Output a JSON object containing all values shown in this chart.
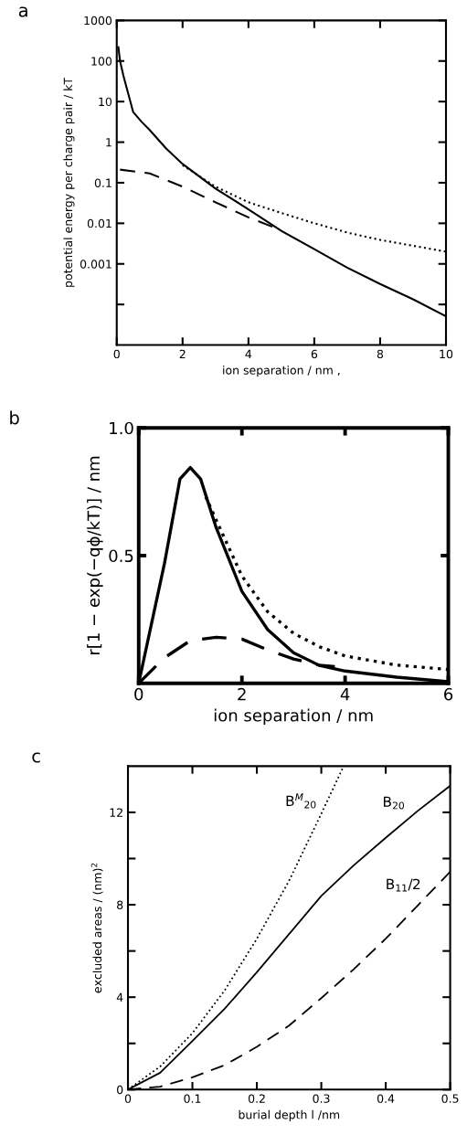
{
  "chart_data": [
    {
      "type": "line",
      "title": "a",
      "xlabel": "ion separation / nm ,",
      "ylabel": "potential energy per charge pair / kT",
      "log": "y",
      "xlim": [
        0,
        10
      ],
      "ylim": [
        1e-05,
        1000
      ],
      "xticks": [
        0,
        2,
        4,
        6,
        8,
        10
      ],
      "yticks": [
        {
          "value": 1000,
          "label": "1000"
        },
        {
          "value": 100,
          "label": "100"
        },
        {
          "value": 10,
          "label": "10"
        },
        {
          "value": 1,
          "label": "1"
        },
        {
          "value": 0.1,
          "label": "0.1"
        },
        {
          "value": 0.01,
          "label": "0.01"
        },
        {
          "value": 0.001,
          "label": "0.001"
        },
        {
          "value": 0.0001,
          "label": null
        }
      ],
      "grid": false,
      "legend": false,
      "series": [
        {
          "color": "#000000",
          "line_style": "solid",
          "x": [
            0.05,
            0.1,
            0.2,
            0.3,
            0.5,
            0.75,
            1,
            1.5,
            2,
            3,
            4,
            5,
            6,
            7,
            8,
            9,
            10
          ],
          "values": [
            220,
            100,
            44,
            22,
            5.5,
            3.2,
            2,
            0.7,
            0.29,
            0.072,
            0.022,
            0.0065,
            0.0023,
            0.00081,
            0.00032,
            0.000134,
            5.1e-05
          ]
        },
        {
          "color": "#000000",
          "line_style": "dashed",
          "x": [
            0.1,
            1,
            2,
            3,
            4,
            4.8
          ],
          "values": [
            0.21,
            0.17,
            0.08,
            0.033,
            0.014,
            0.0078
          ]
        },
        {
          "color": "#000000",
          "line_style": "dotted",
          "x": [
            2,
            3,
            4,
            5,
            6,
            7,
            8,
            9,
            10
          ],
          "values": [
            0.27,
            0.08,
            0.033,
            0.018,
            0.01,
            0.0059,
            0.0039,
            0.0028,
            0.002
          ]
        }
      ]
    },
    {
      "type": "line",
      "title": "b",
      "xlabel": "ion separation / nm",
      "ylabel": "r[1 − exp(−qϕ/kT)] / nm",
      "xlim": [
        0,
        6
      ],
      "ylim": [
        0,
        1
      ],
      "xticks": [
        0,
        2,
        4,
        6
      ],
      "yticks": [
        {
          "value": 0.5,
          "label": "0.5"
        },
        {
          "value": 1.0,
          "label": "1.0"
        }
      ],
      "grid": false,
      "legend": false,
      "series": [
        {
          "color": "#000000",
          "line_style": "solid",
          "x": [
            0,
            0.5,
            0.8,
            1,
            1.2,
            1.5,
            2,
            2.5,
            3,
            3.5,
            4,
            5,
            6
          ],
          "values": [
            0,
            0.47,
            0.8,
            0.845,
            0.8,
            0.61,
            0.36,
            0.21,
            0.12,
            0.07,
            0.048,
            0.024,
            0.006
          ]
        },
        {
          "color": "#000000",
          "line_style": "dashed",
          "x": [
            0,
            0.5,
            1,
            1.5,
            2,
            2.5,
            3,
            3.5,
            3.8
          ],
          "values": [
            0,
            0.1,
            0.167,
            0.18,
            0.173,
            0.131,
            0.095,
            0.071,
            0.065
          ]
        },
        {
          "color": "#000000",
          "line_style": "dotted",
          "x": [
            1.3,
            1.5,
            2,
            2.5,
            3,
            3.5,
            4,
            5,
            6
          ],
          "values": [
            0.73,
            0.64,
            0.42,
            0.28,
            0.196,
            0.143,
            0.107,
            0.071,
            0.054
          ]
        }
      ]
    },
    {
      "type": "line",
      "title": "c",
      "xlabel": "burial depth l /nm",
      "ylabel": "excluded areas / (nm)$^{2}$",
      "xlim": [
        0,
        0.5
      ],
      "ylim": [
        0,
        14
      ],
      "xticks": [
        0,
        0.1,
        0.2,
        0.3,
        0.4,
        0.5
      ],
      "yticks": [
        0,
        {
          "value": 2,
          "label": null
        },
        4,
        {
          "value": 6,
          "label": null
        },
        8,
        {
          "value": 10,
          "label": null
        },
        12
      ],
      "grid": false,
      "series": [
        {
          "name": "B$^{M}$$_{20}$",
          "color": "#000000",
          "line_style": "dotted",
          "x": [
            0,
            0.05,
            0.1,
            0.15,
            0.2,
            0.25,
            0.3,
            0.333
          ],
          "values": [
            0,
            1.0,
            2.44,
            4.29,
            6.53,
            9.04,
            11.94,
            13.9
          ]
        },
        {
          "name": "B$_{20}$",
          "color": "#000000",
          "line_style": "solid",
          "x": [
            0,
            0.05,
            0.1,
            0.15,
            0.2,
            0.25,
            0.3,
            0.35,
            0.4,
            0.45,
            0.5
          ],
          "values": [
            0,
            0.73,
            2.1,
            3.5,
            5.08,
            6.73,
            8.38,
            9.7,
            10.9,
            12.07,
            13.15
          ]
        },
        {
          "name": "B$_{11}$/2",
          "color": "#000000",
          "line_style": "dashed",
          "x": [
            0,
            0.05,
            0.1,
            0.15,
            0.2,
            0.25,
            0.3,
            0.35,
            0.4,
            0.45,
            0.5
          ],
          "values": [
            0,
            0.13,
            0.53,
            1.06,
            1.85,
            2.77,
            3.96,
            5.2,
            6.53,
            7.98,
            9.43
          ]
        }
      ]
    }
  ]
}
